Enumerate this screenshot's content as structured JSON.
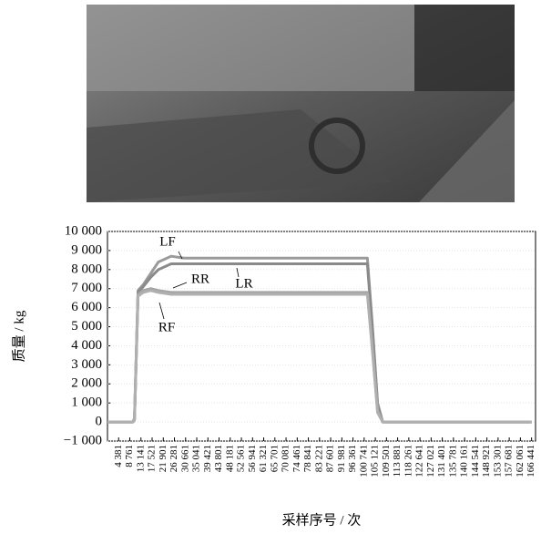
{
  "chart_data": {
    "type": "line",
    "x_label": "采样序号 / 次",
    "y_label": "质量 / kg",
    "x": [
      1,
      10000,
      10600,
      12000,
      14000,
      17000,
      20000,
      25000,
      30000,
      60000,
      100000,
      102000,
      104000,
      106000,
      108000,
      166441
    ],
    "series": [
      {
        "name": "LF",
        "color": "#9a9a9a",
        "values": [
          0,
          0,
          200,
          6900,
          7200,
          7800,
          8400,
          8700,
          8600,
          8600,
          8600,
          8600,
          5000,
          1000,
          0,
          0
        ]
      },
      {
        "name": "LR",
        "color": "#8a8a8a",
        "values": [
          0,
          0,
          150,
          6800,
          7100,
          7600,
          8000,
          8300,
          8300,
          8300,
          8300,
          8300,
          4800,
          900,
          0,
          0
        ]
      },
      {
        "name": "RR",
        "color": "#a5a5a5",
        "values": [
          0,
          0,
          100,
          6700,
          6900,
          7000,
          6900,
          6800,
          6800,
          6800,
          6800,
          6800,
          3800,
          600,
          0,
          0
        ]
      },
      {
        "name": "RF",
        "color": "#b0b0b0",
        "values": [
          0,
          0,
          100,
          6600,
          6800,
          6900,
          6800,
          6700,
          6700,
          6700,
          6700,
          6700,
          3700,
          500,
          0,
          0
        ]
      }
    ],
    "xlim": [
      1,
      168000
    ],
    "xticks": [
      {
        "value": 4381,
        "label": "4 381"
      },
      {
        "value": 8761,
        "label": "8 761"
      },
      {
        "value": 13141,
        "label": "13 141"
      },
      {
        "value": 17521,
        "label": "17 521"
      },
      {
        "value": 21901,
        "label": "21 901"
      },
      {
        "value": 26281,
        "label": "26 281"
      },
      {
        "value": 30661,
        "label": "30 661"
      },
      {
        "value": 35041,
        "label": "35 041"
      },
      {
        "value": 39421,
        "label": "39 421"
      },
      {
        "value": 43801,
        "label": "43 801"
      },
      {
        "value": 48181,
        "label": "48 181"
      },
      {
        "value": 52561,
        "label": "52 561"
      },
      {
        "value": 56941,
        "label": "56 941"
      },
      {
        "value": 61321,
        "label": "61 321"
      },
      {
        "value": 65701,
        "label": "65 701"
      },
      {
        "value": 70081,
        "label": "70 081"
      },
      {
        "value": 74461,
        "label": "74 461"
      },
      {
        "value": 78841,
        "label": "78 841"
      },
      {
        "value": 83221,
        "label": "83 221"
      },
      {
        "value": 87601,
        "label": "87 601"
      },
      {
        "value": 91981,
        "label": "91 981"
      },
      {
        "value": 96361,
        "label": "96 361"
      },
      {
        "value": 100741,
        "label": "100 741"
      },
      {
        "value": 105121,
        "label": "105 121"
      },
      {
        "value": 109501,
        "label": "109 501"
      },
      {
        "value": 113881,
        "label": "113 881"
      },
      {
        "value": 118261,
        "label": "118 261"
      },
      {
        "value": 122641,
        "label": "122 641"
      },
      {
        "value": 127021,
        "label": "127 021"
      },
      {
        "value": 131401,
        "label": "131 401"
      },
      {
        "value": 135781,
        "label": "135 781"
      },
      {
        "value": 140161,
        "label": "140 161"
      },
      {
        "value": 144541,
        "label": "144 541"
      },
      {
        "value": 148921,
        "label": "148 921"
      },
      {
        "value": 153301,
        "label": "153 301"
      },
      {
        "value": 157681,
        "label": "157 681"
      },
      {
        "value": 162061,
        "label": "162 061"
      },
      {
        "value": 166441,
        "label": "166 441"
      }
    ],
    "ylim": [
      -1000,
      10000
    ],
    "yticks": [
      {
        "value": -1000,
        "label": "−1 000"
      },
      0,
      {
        "value": 1000,
        "label": "1 000"
      },
      {
        "value": 2000,
        "label": "2 000"
      },
      {
        "value": 3000,
        "label": "3 000"
      },
      {
        "value": 4000,
        "label": "4 000"
      },
      {
        "value": 5000,
        "label": "5 000"
      },
      {
        "value": 6000,
        "label": "6 000"
      },
      {
        "value": 7000,
        "label": "7 000"
      },
      {
        "value": 8000,
        "label": "8 000"
      },
      {
        "value": 9000,
        "label": "9 000"
      },
      {
        "value": 10000,
        "label": "10 000"
      }
    ],
    "grid": true
  }
}
